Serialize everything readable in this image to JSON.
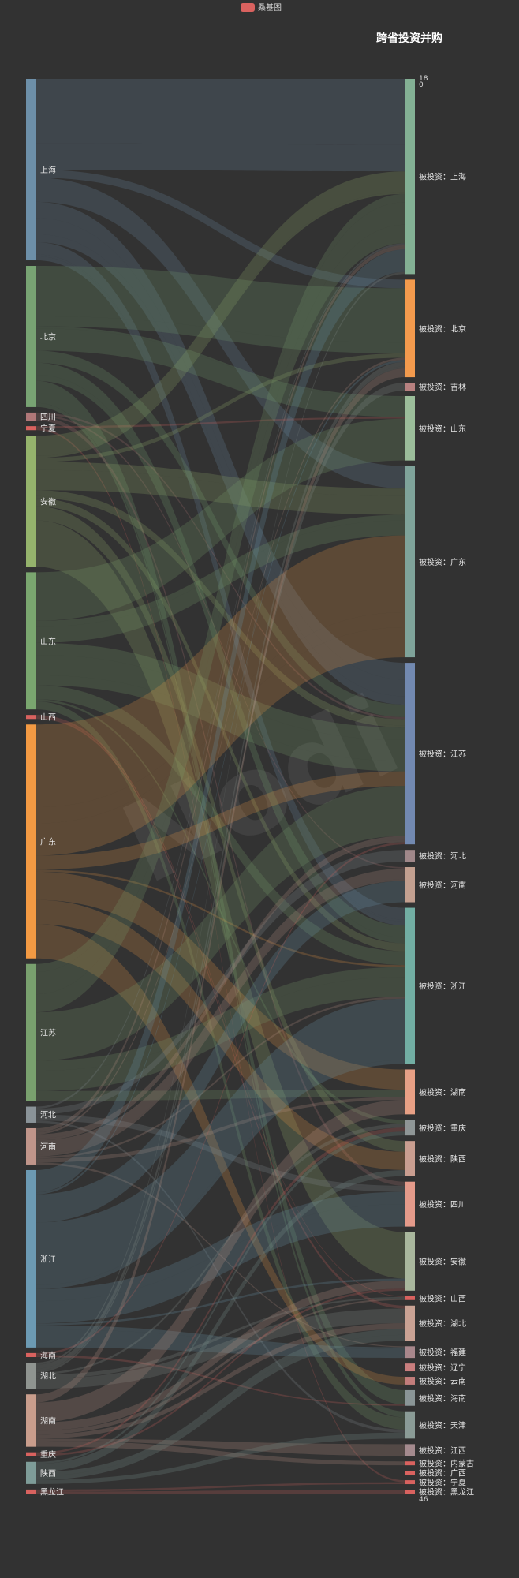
{
  "legend": {
    "label": "桑基图",
    "color": "#d9625f"
  },
  "title": "跨省投资并购",
  "axis_marks": {
    "top_a": "18",
    "top_b": "0",
    "bottom": "46"
  },
  "watermark": "Nodi",
  "chart_data": {
    "type": "sankey",
    "title": "跨省投资并购",
    "legend": [
      "桑基图"
    ],
    "sources": [
      {
        "name": "上海",
        "value": 90,
        "color": "#6d8fa8"
      },
      {
        "name": "北京",
        "value": 70,
        "color": "#78a373"
      },
      {
        "name": "四川",
        "value": 4,
        "color": "#b07778"
      },
      {
        "name": "宁夏",
        "value": 2,
        "color": "#d9625f"
      },
      {
        "name": "安徽",
        "value": 65,
        "color": "#95b36c"
      },
      {
        "name": "山东",
        "value": 68,
        "color": "#7aa66f"
      },
      {
        "name": "山西",
        "value": 2,
        "color": "#d9625f"
      },
      {
        "name": "广东",
        "value": 116,
        "color": "#f39a43"
      },
      {
        "name": "江苏",
        "value": 68,
        "color": "#79a06e"
      },
      {
        "name": "河北",
        "value": 8,
        "color": "#8a9398"
      },
      {
        "name": "河南",
        "value": 18,
        "color": "#c0958a"
      },
      {
        "name": "浙江",
        "value": 88,
        "color": "#6c9ab3"
      },
      {
        "name": "海南",
        "value": 2,
        "color": "#d9625f"
      },
      {
        "name": "湖北",
        "value": 13,
        "color": "#8f9490"
      },
      {
        "name": "湖南",
        "value": 26,
        "color": "#c99d8c"
      },
      {
        "name": "重庆",
        "value": 2,
        "color": "#d9625f"
      },
      {
        "name": "陕西",
        "value": 11,
        "color": "#7e9c98"
      },
      {
        "name": "黑龙江",
        "value": 2,
        "color": "#d9625f"
      }
    ],
    "targets": [
      {
        "name": "被投资：上海",
        "value": 100,
        "color": "#83b094"
      },
      {
        "name": "被投资：北京",
        "value": 50,
        "color": "#f39a4d"
      },
      {
        "name": "被投资：吉林",
        "value": 4,
        "color": "#b88180"
      },
      {
        "name": "被投资：山东",
        "value": 33,
        "color": "#9bbd9a"
      },
      {
        "name": "被投资：广东",
        "value": 98,
        "color": "#7fa39a"
      },
      {
        "name": "被投资：江苏",
        "value": 93,
        "color": "#7289b0"
      },
      {
        "name": "被投资：河北",
        "value": 6,
        "color": "#a0888a"
      },
      {
        "name": "被投资：河南",
        "value": 18,
        "color": "#c3a090"
      },
      {
        "name": "被投资：浙江",
        "value": 80,
        "color": "#72aea3"
      },
      {
        "name": "被投资：湖南",
        "value": 23,
        "color": "#e8a085"
      },
      {
        "name": "被投资：重庆",
        "value": 8,
        "color": "#8f9696"
      },
      {
        "name": "被投资：陕西",
        "value": 18,
        "color": "#c99e90"
      },
      {
        "name": "被投资：四川",
        "value": 23,
        "color": "#e49a8a"
      },
      {
        "name": "被投资：安徽",
        "value": 30,
        "color": "#a9b79d"
      },
      {
        "name": "被投资：山西",
        "value": 2,
        "color": "#d9625f"
      },
      {
        "name": "被投资：湖北",
        "value": 18,
        "color": "#c9a294"
      },
      {
        "name": "被投资：福建",
        "value": 6,
        "color": "#a8878c"
      },
      {
        "name": "被投资：辽宁",
        "value": 4,
        "color": "#c97e7e"
      },
      {
        "name": "被投资：云南",
        "value": 4,
        "color": "#c37d7b"
      },
      {
        "name": "被投资：海南",
        "value": 8,
        "color": "#8a9596"
      },
      {
        "name": "被投资：天津",
        "value": 14,
        "color": "#8a9b96"
      },
      {
        "name": "被投资：江西",
        "value": 6,
        "color": "#a48a8e"
      },
      {
        "name": "被投资：内蒙古",
        "value": 2,
        "color": "#d9625f"
      },
      {
        "name": "被投资：广西",
        "value": 2,
        "color": "#d9625f"
      },
      {
        "name": "被投资：宁夏",
        "value": 2,
        "color": "#d9625f"
      },
      {
        "name": "被投资：黑龙江",
        "value": 2,
        "color": "#d9625f"
      }
    ]
  }
}
